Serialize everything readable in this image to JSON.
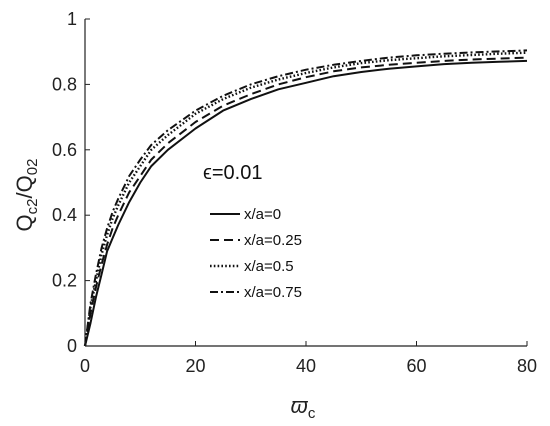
{
  "chart_data": {
    "type": "line",
    "xlabel": {
      "main": "ϖ",
      "sub": "c"
    },
    "ylabel": {
      "q1": "Q",
      "q1sub": "c2",
      "slash": "/",
      "q2": "Q",
      "q2sub": "02"
    },
    "annotation": "ϵ=0.01",
    "xlim": [
      0,
      80
    ],
    "ylim": [
      0,
      1
    ],
    "xticks": [
      0,
      20,
      40,
      60,
      80
    ],
    "yticks": [
      0,
      0.2,
      0.4,
      0.6,
      0.8,
      1
    ],
    "ytick_labels": [
      "0",
      "0.2",
      "0.4",
      "0.6",
      "0.8",
      "1"
    ],
    "grid": false,
    "legend_position": "center",
    "x": [
      0,
      1,
      2,
      3,
      4,
      5,
      6,
      8,
      10,
      12,
      15,
      20,
      25,
      30,
      35,
      40,
      45,
      50,
      55,
      60,
      65,
      70,
      75,
      80
    ],
    "series": [
      {
        "name": "x/a=0",
        "dash": "solid",
        "values": [
          0.0,
          0.07,
          0.15,
          0.22,
          0.29,
          0.33,
          0.37,
          0.44,
          0.5,
          0.55,
          0.6,
          0.665,
          0.72,
          0.755,
          0.785,
          0.805,
          0.825,
          0.838,
          0.848,
          0.855,
          0.862,
          0.866,
          0.869,
          0.872
        ]
      },
      {
        "name": "x/a=0.25",
        "dash": "dashed",
        "values": [
          0.0,
          0.1,
          0.18,
          0.25,
          0.31,
          0.36,
          0.4,
          0.47,
          0.52,
          0.57,
          0.62,
          0.685,
          0.735,
          0.77,
          0.8,
          0.822,
          0.84,
          0.852,
          0.86,
          0.866,
          0.872,
          0.876,
          0.879,
          0.882
        ]
      },
      {
        "name": "x/a=0.5",
        "dash": "dotted",
        "values": [
          0.0,
          0.12,
          0.2,
          0.28,
          0.34,
          0.39,
          0.43,
          0.5,
          0.55,
          0.6,
          0.645,
          0.71,
          0.755,
          0.79,
          0.815,
          0.835,
          0.852,
          0.865,
          0.874,
          0.88,
          0.886,
          0.89,
          0.894,
          0.897
        ]
      },
      {
        "name": "x/a=0.75",
        "dash": "dashdot",
        "values": [
          0.0,
          0.13,
          0.22,
          0.3,
          0.36,
          0.41,
          0.45,
          0.52,
          0.57,
          0.615,
          0.66,
          0.72,
          0.765,
          0.8,
          0.825,
          0.845,
          0.86,
          0.872,
          0.882,
          0.889,
          0.894,
          0.898,
          0.901,
          0.904
        ]
      }
    ]
  }
}
